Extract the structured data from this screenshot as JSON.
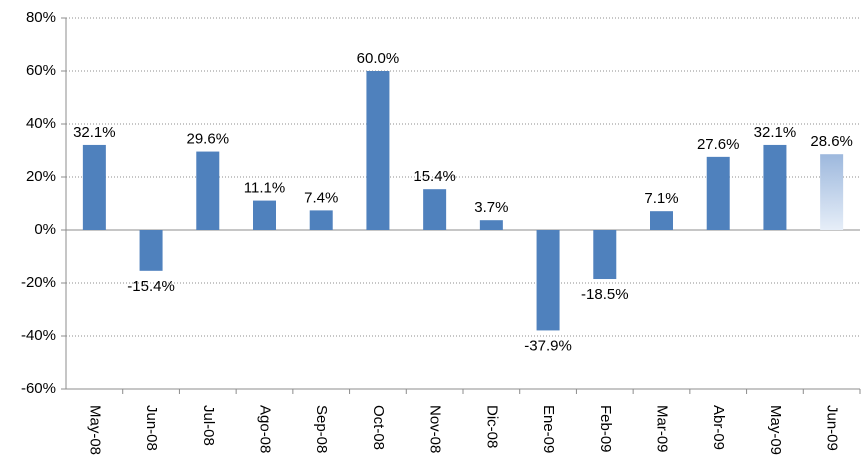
{
  "chart_data": {
    "type": "bar",
    "categories": [
      "May-08",
      "Jun-08",
      "Jul-08",
      "Ago-08",
      "Sep-08",
      "Oct-08",
      "Nov-08",
      "Dic-08",
      "Ene-09",
      "Feb-09",
      "Mar-09",
      "Abr-09",
      "May-09",
      "Jun-09"
    ],
    "values": [
      32.1,
      -15.4,
      29.6,
      11.1,
      7.4,
      60.0,
      15.4,
      3.7,
      -37.9,
      -18.5,
      7.1,
      27.6,
      32.1,
      28.6
    ],
    "value_labels": [
      "32.1%",
      "-15.4%",
      "29.6%",
      "11.1%",
      "7.4%",
      "60.0%",
      "15.4%",
      "3.7%",
      "-37.9%",
      "-18.5%",
      "7.1%",
      "27.6%",
      "32.1%",
      "28.6%"
    ],
    "colors": [
      "#4f81bd",
      "#4f81bd",
      "#4f81bd",
      "#4f81bd",
      "#4f81bd",
      "#4f81bd",
      "#4f81bd",
      "#4f81bd",
      "#4f81bd",
      "#4f81bd",
      "#4f81bd",
      "#4f81bd",
      "#4f81bd",
      "#9db8dd"
    ],
    "ylim": [
      -60,
      80
    ],
    "yticks": [
      {
        "value": -60,
        "label": "-60%"
      },
      {
        "value": -40,
        "label": "-40%"
      },
      {
        "value": -20,
        "label": "-20%"
      },
      {
        "value": 0,
        "label": "0%"
      },
      {
        "value": 20,
        "label": "20%"
      },
      {
        "value": 40,
        "label": "40%"
      },
      {
        "value": 60,
        "label": "60%"
      },
      {
        "value": 80,
        "label": "80%"
      }
    ],
    "grid": true
  }
}
